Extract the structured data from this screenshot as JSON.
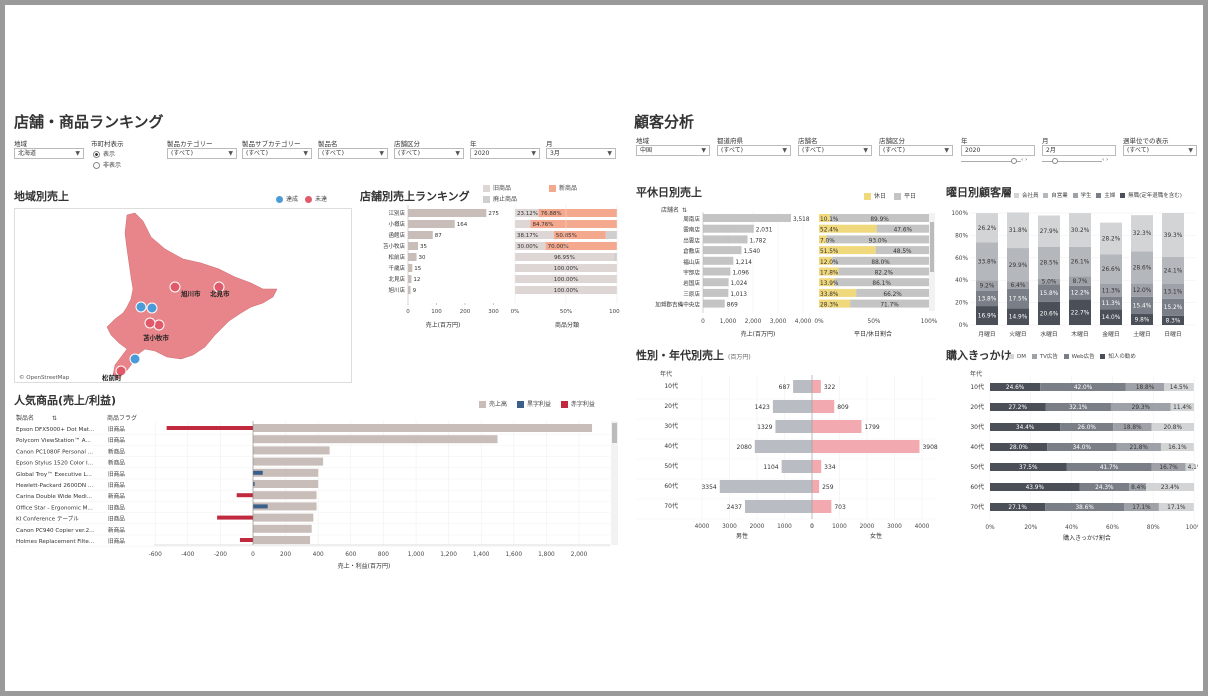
{
  "colors": {
    "achieved": "#4a9bd8",
    "not_achieved": "#e05a6a",
    "map_fill": "#e8858a",
    "bar_gray": "#c8bdb9",
    "old": "#ddd6d4",
    "new": "#f4a88e",
    "disc": "#cfcfcf",
    "profit_blue": "#3a5f8a",
    "profit_red": "#c0293e",
    "holiday": "#f0d87c",
    "weekday": "#c4c4c4",
    "male": "#b9bcc2",
    "female": "#f2aab0"
  },
  "left": {
    "title": "店舗・商品ランキング",
    "filters": [
      {
        "label": "地域",
        "value": "北海道"
      },
      {
        "label": "製品カテゴリー",
        "value": "(すべて)"
      },
      {
        "label": "製品サブカテゴリー",
        "value": "(すべて)"
      },
      {
        "label": "製品名",
        "value": "(すべて)"
      },
      {
        "label": "店舗区分",
        "value": "(すべて)"
      },
      {
        "label": "年",
        "value": "2020"
      },
      {
        "label": "月",
        "value": "3月"
      }
    ],
    "city_toggle": {
      "label": "市町村表示",
      "options": [
        "表示",
        "非表示"
      ],
      "selected": "表示"
    },
    "map": {
      "title": "地域別売上",
      "legend": [
        "達成",
        "未達"
      ],
      "labels": [
        "旭川市",
        "北見市",
        "苫小牧市",
        "松前町"
      ],
      "attribution": "© OpenStreetMap"
    },
    "store_ranking": {
      "title": "店舗別売上ランキング",
      "legend": [
        "旧商品",
        "新商品",
        "廃止商品"
      ],
      "x_axis_title": "売上(百万円)",
      "pct_axis_title": "商品分類",
      "x_ticks": [
        "0",
        "100",
        "200",
        "300"
      ],
      "pct_ticks": [
        "0%",
        "50%",
        "100%"
      ]
    },
    "popular": {
      "title": "人気商品(売上/利益)",
      "legend": [
        "売上高",
        "黒字利益",
        "赤字利益"
      ],
      "col_product": "製品名",
      "col_flag": "商品フラグ",
      "x_axis_title": "売上・利益(百万円)",
      "x_ticks": [
        "-600",
        "-400",
        "-200",
        "0",
        "200",
        "400",
        "600",
        "800",
        "1,000",
        "1,200",
        "1,400",
        "1,600",
        "1,800",
        "2,000"
      ]
    }
  },
  "right": {
    "title": "顧客分析",
    "filters": [
      {
        "label": "地域",
        "value": "中国"
      },
      {
        "label": "都道府県",
        "value": "(すべて)"
      },
      {
        "label": "店舗名",
        "value": "(すべて)"
      },
      {
        "label": "店舗区分",
        "value": "(すべて)"
      },
      {
        "label": "年",
        "value": "2020"
      },
      {
        "label": "月",
        "value": "2月"
      },
      {
        "label": "週単位での表示",
        "value": "(すべて)"
      }
    ],
    "holiday": {
      "title": "平休日別売上",
      "col_store": "店舗名",
      "legend": [
        "休日",
        "平日"
      ],
      "x_axis_title": "売上(百万円)",
      "pct_axis_title": "平日/休日割合",
      "x_ticks": [
        "0",
        "1,000",
        "2,000",
        "3,000",
        "4,000"
      ],
      "pct_ticks": [
        "0%",
        "50%",
        "100%"
      ]
    },
    "weekday": {
      "title": "曜日別顧客層",
      "legend": [
        "会社員",
        "自営業",
        "学生",
        "主婦",
        "無職(定年退職を含む)"
      ],
      "y_ticks": [
        "100%",
        "80%",
        "60%",
        "40%",
        "20%",
        "0%"
      ]
    },
    "gender_age": {
      "title": "性別・年代別売上",
      "subtitle": "(百万円)",
      "col_age": "年代",
      "male_label": "男性",
      "female_label": "女性",
      "male_ticks": [
        "4000",
        "3000",
        "2000",
        "1000",
        "0"
      ],
      "female_ticks": [
        "0",
        "1000",
        "2000",
        "3000",
        "4000"
      ]
    },
    "trigger": {
      "title": "購入きっかけ",
      "col_age": "年代",
      "legend": [
        "DM",
        "TV広告",
        "Web広告",
        "知人の勧め"
      ],
      "x_axis_title": "購入きっかけ割合",
      "x_ticks": [
        "0%",
        "20%",
        "40%",
        "60%",
        "80%",
        "100%"
      ]
    }
  },
  "chart_data": [
    {
      "type": "bar",
      "title": "店舗別売上ランキング",
      "categories": [
        "江別店",
        "小樽店",
        "函館店",
        "苫小牧店",
        "松前店",
        "千歳店",
        "北見店",
        "旭川店"
      ],
      "values": [
        275,
        164,
        87,
        35,
        30,
        15,
        12,
        9
      ],
      "xlabel": "売上(百万円)",
      "xlim": [
        0,
        330
      ],
      "pct_series": [
        {
          "name": "旧商品",
          "values": [
            23.12,
            15.24,
            38.17,
            30.0,
            96.95,
            100.0,
            100.0,
            100.0
          ],
          "labels": [
            "23.12%",
            "",
            "38.17%",
            "30.00%",
            "96.95%",
            "100.00%",
            "100.00%",
            "100.00%"
          ]
        },
        {
          "name": "新商品",
          "values": [
            76.88,
            84.76,
            50.85,
            70.0,
            0,
            0,
            0,
            0
          ],
          "labels": [
            "76.88%",
            "84.76%",
            "50.85%",
            "70.00%",
            "",
            "",
            "",
            ""
          ]
        },
        {
          "name": "廃止商品",
          "values": [
            0,
            0,
            10.98,
            0,
            3.05,
            0,
            0,
            0
          ],
          "labels": [
            "",
            "",
            "",
            "",
            "",
            "",
            "",
            ""
          ]
        }
      ]
    },
    {
      "type": "bar",
      "title": "人気商品(売上/利益)",
      "categories": [
        "Epson DFX5000+ Dot Mat...",
        "Polycom ViewStation™ A...",
        "Canon PC1080F Personal ...",
        "Epson Stylus 1520 Color I...",
        "Global Troy™ Executive L...",
        "Hewlett-Packard 2600DN ...",
        "Carina Double Wide Medi...",
        "Office Star - Ergonomic M...",
        "KI Conference テーブル",
        "Canon PC940 Copier ver.2...",
        "Holmes Replacement Filte..."
      ],
      "flags": [
        "旧商品",
        "旧商品",
        "新商品",
        "新商品",
        "旧商品",
        "旧商品",
        "新商品",
        "旧商品",
        "旧商品",
        "新商品",
        "旧商品"
      ],
      "series": [
        {
          "name": "売上高",
          "values": [
            2080,
            1500,
            470,
            430,
            400,
            400,
            390,
            390,
            370,
            360,
            350
          ]
        },
        {
          "name": "利益",
          "values": [
            -530,
            0,
            0,
            0,
            60,
            10,
            -100,
            90,
            -220,
            0,
            -80
          ]
        }
      ],
      "xlabel": "売上・利益(百万円)",
      "xlim": [
        -650,
        2250
      ]
    },
    {
      "type": "bar",
      "title": "平休日別売上",
      "categories": [
        "周南店",
        "雲南店",
        "出雲店",
        "倉敷店",
        "福山店",
        "宇部店",
        "岩国店",
        "三原店",
        "加賀郡吉備中央店"
      ],
      "values": [
        3518,
        2031,
        1782,
        1540,
        1214,
        1096,
        1024,
        1013,
        869
      ],
      "value_labels": [
        "3,518",
        "2,031",
        "1,782",
        "1,540",
        "1,214",
        "1,096",
        "1,024",
        "1,013",
        "869"
      ],
      "xlabel": "売上(百万円)",
      "xlim": [
        0,
        4200
      ],
      "pct_series": [
        {
          "name": "休日",
          "values": [
            10.1,
            52.4,
            7.0,
            51.5,
            12.0,
            17.8,
            13.9,
            33.8,
            28.3
          ]
        },
        {
          "name": "平日",
          "values": [
            89.9,
            47.6,
            93.0,
            48.5,
            88.0,
            82.2,
            86.1,
            66.2,
            71.7
          ]
        }
      ]
    },
    {
      "type": "bar",
      "title": "曜日別顧客層",
      "categories": [
        "月曜日",
        "火曜日",
        "水曜日",
        "木曜日",
        "金曜日",
        "土曜日",
        "日曜日"
      ],
      "series": [
        {
          "name": "無職(定年退職を含む)",
          "values": [
            16.9,
            14.9,
            20.6,
            22.7,
            14.0,
            9.8,
            8.3
          ],
          "color": "#4a4f58"
        },
        {
          "name": "主婦",
          "values": [
            13.8,
            17.5,
            15.8,
            12.2,
            11.3,
            15.4,
            15.2
          ],
          "color": "#7a7f87"
        },
        {
          "name": "学生",
          "values": [
            9.2,
            6.4,
            5.0,
            8.7,
            11.3,
            12.0,
            13.1
          ],
          "color": "#9ea2a8"
        },
        {
          "name": "自営業",
          "values": [
            33.8,
            29.9,
            28.5,
            26.1,
            26.6,
            28.6,
            24.1
          ],
          "color": "#b4b7bb"
        },
        {
          "name": "会社員",
          "values": [
            26.2,
            31.8,
            27.9,
            30.2,
            28.2,
            32.3,
            39.3
          ],
          "color": "#d2d4d6"
        }
      ],
      "ylim": [
        0,
        100
      ]
    },
    {
      "type": "bar",
      "title": "性別・年代別売上",
      "categories": [
        "10代",
        "20代",
        "30代",
        "40代",
        "50代",
        "60代",
        "70代"
      ],
      "series": [
        {
          "name": "男性",
          "values": [
            687,
            1423,
            1329,
            2080,
            1104,
            3354,
            2437
          ]
        },
        {
          "name": "女性",
          "values": [
            322,
            809,
            1799,
            3908,
            334,
            259,
            703
          ]
        }
      ],
      "xlim": [
        0,
        4000
      ]
    },
    {
      "type": "bar",
      "title": "購入きっかけ",
      "categories": [
        "10代",
        "20代",
        "30代",
        "40代",
        "50代",
        "60代",
        "70代"
      ],
      "series": [
        {
          "name": "知人の勧め",
          "values": [
            24.6,
            27.2,
            34.4,
            28.0,
            37.5,
            43.9,
            27.1
          ],
          "color": "#4a4f58"
        },
        {
          "name": "Web広告",
          "values": [
            42.0,
            32.1,
            26.0,
            34.0,
            41.7,
            24.3,
            38.6
          ],
          "color": "#7a7f87"
        },
        {
          "name": "TV広告",
          "values": [
            18.8,
            29.3,
            18.8,
            21.8,
            16.7,
            8.4,
            17.1
          ],
          "color": "#9ea2a8"
        },
        {
          "name": "DM",
          "values": [
            14.5,
            11.4,
            20.8,
            16.1,
            4.1,
            23.4,
            17.1
          ],
          "color": "#d2d4d6"
        }
      ],
      "xlabel": "購入きっかけ割合",
      "xlim": [
        0,
        100
      ]
    }
  ]
}
